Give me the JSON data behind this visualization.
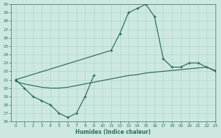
{
  "line1_x": [
    0,
    1,
    2,
    3,
    4,
    5,
    6,
    7,
    8,
    9
  ],
  "line1_y": [
    21.0,
    20.0,
    19.0,
    18.5,
    18.0,
    17.0,
    16.5,
    17.0,
    19.0,
    21.5
  ],
  "line2_x": [
    0,
    11,
    12,
    13,
    14,
    15,
    16,
    17,
    18,
    19,
    20,
    21,
    22,
    23
  ],
  "line2_y": [
    21.0,
    24.5,
    26.5,
    29.0,
    29.5,
    30.0,
    28.5,
    23.5,
    22.5,
    22.5,
    23.0,
    23.0,
    22.5,
    22.0
  ],
  "line3_x": [
    0,
    1,
    2,
    3,
    4,
    5,
    6,
    7,
    8,
    9,
    10,
    11,
    12,
    13,
    14,
    15,
    16,
    17,
    18,
    19,
    20,
    21,
    22,
    23
  ],
  "line3_y": [
    20.8,
    20.5,
    20.3,
    20.1,
    20.0,
    20.0,
    20.1,
    20.3,
    20.5,
    20.7,
    20.9,
    21.1,
    21.3,
    21.5,
    21.6,
    21.8,
    21.9,
    22.0,
    22.1,
    22.2,
    22.3,
    22.4,
    22.5,
    22.1
  ],
  "bg_color": "#cce8e0",
  "line_color": "#2e6b5e",
  "grid_color": "#aed4cc",
  "xlabel": "Humidex (Indice chaleur)",
  "ylim": [
    16,
    30
  ],
  "xlim": [
    -0.5,
    23
  ],
  "yticks": [
    16,
    17,
    18,
    19,
    20,
    21,
    22,
    23,
    24,
    25,
    26,
    27,
    28,
    29,
    30
  ],
  "xticks": [
    0,
    1,
    2,
    3,
    4,
    5,
    6,
    7,
    8,
    9,
    10,
    11,
    12,
    13,
    14,
    15,
    16,
    17,
    18,
    19,
    20,
    21,
    22,
    23
  ]
}
